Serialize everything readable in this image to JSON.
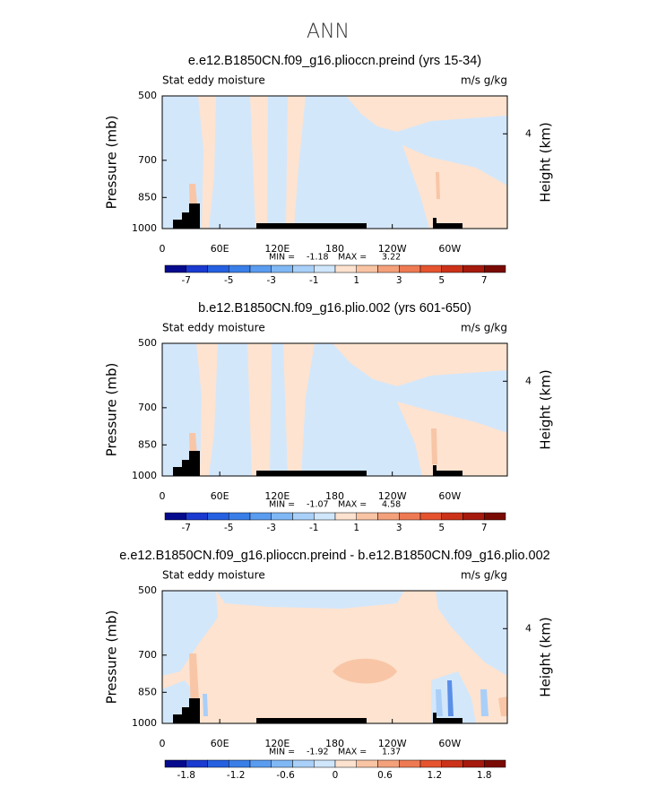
{
  "title": "ANN",
  "chart_data": [
    {
      "type": "contour",
      "title": "e.e12.B1850CN.f09_g16.plioccn.preind (yrs 15-34)",
      "subtitle_left": "Stat eddy moisture",
      "subtitle_right": "m/s g/kg",
      "ylabel": "Pressure (mb)",
      "y2label": "Height (km)",
      "ylog": true,
      "ylim": [
        1000,
        500
      ],
      "yticks": [
        500,
        700,
        850,
        1000
      ],
      "y2lim": [
        0,
        5.6
      ],
      "y2ticks": [
        4
      ],
      "xlim": [
        0,
        360
      ],
      "xticks": [
        0,
        {
          "value": 60,
          "label": "60E"
        },
        {
          "value": 120,
          "label": "120E"
        },
        180,
        {
          "value": 240,
          "label": "120W"
        },
        {
          "value": 300,
          "label": "60W"
        }
      ],
      "min_label": "MIN =",
      "min": -1.18,
      "max_label": "MAX =",
      "max": 3.22,
      "colorbar": {
        "colors": [
          "#060a8c",
          "#1a3ad0",
          "#2560e0",
          "#3a7fe8",
          "#5a9cf0",
          "#80b8f5",
          "#a8d0f8",
          "#cfe6fb",
          "#fde2cf",
          "#f9c4a4",
          "#f4a07a",
          "#ee7a53",
          "#e5542f",
          "#cc3218",
          "#a51a0c",
          "#7a0a04"
        ],
        "ticks": [
          -7,
          -5,
          -3,
          -1,
          1,
          3,
          5,
          7
        ]
      }
    },
    {
      "type": "contour",
      "title": "b.e12.B1850CN.f09_g16.plio.002 (yrs 601-650)",
      "subtitle_left": "Stat eddy moisture",
      "subtitle_right": "m/s g/kg",
      "ylabel": "Pressure (mb)",
      "y2label": "Height (km)",
      "ylog": true,
      "ylim": [
        1000,
        500
      ],
      "yticks": [
        500,
        700,
        850,
        1000
      ],
      "y2lim": [
        0,
        5.6
      ],
      "y2ticks": [
        4
      ],
      "xlim": [
        0,
        360
      ],
      "xticks": [
        0,
        {
          "value": 60,
          "label": "60E"
        },
        {
          "value": 120,
          "label": "120E"
        },
        180,
        {
          "value": 240,
          "label": "120W"
        },
        {
          "value": 300,
          "label": "60W"
        }
      ],
      "min_label": "MIN =",
      "min": -1.07,
      "max_label": "MAX =",
      "max": 4.58,
      "colorbar": {
        "colors": [
          "#060a8c",
          "#1a3ad0",
          "#2560e0",
          "#3a7fe8",
          "#5a9cf0",
          "#80b8f5",
          "#a8d0f8",
          "#cfe6fb",
          "#fde2cf",
          "#f9c4a4",
          "#f4a07a",
          "#ee7a53",
          "#e5542f",
          "#cc3218",
          "#a51a0c",
          "#7a0a04"
        ],
        "ticks": [
          -7,
          -5,
          -3,
          -1,
          1,
          3,
          5,
          7
        ]
      }
    },
    {
      "type": "contour",
      "title": "e.e12.B1850CN.f09_g16.plioccn.preind - b.e12.B1850CN.f09_g16.plio.002",
      "subtitle_left": "Stat eddy moisture",
      "subtitle_right": "m/s g/kg",
      "ylabel": "Pressure (mb)",
      "y2label": "Height (km)",
      "ylog": true,
      "ylim": [
        1000,
        500
      ],
      "yticks": [
        500,
        700,
        850,
        1000
      ],
      "y2lim": [
        0,
        5.6
      ],
      "y2ticks": [
        4
      ],
      "xlim": [
        0,
        360
      ],
      "xticks": [
        0,
        {
          "value": 60,
          "label": "60E"
        },
        {
          "value": 120,
          "label": "120E"
        },
        180,
        {
          "value": 240,
          "label": "120W"
        },
        {
          "value": 300,
          "label": "60W"
        }
      ],
      "min_label": "MIN =",
      "min": -1.92,
      "max_label": "MAX =",
      "max": 1.37,
      "colorbar": {
        "colors": [
          "#060a8c",
          "#1a3ad0",
          "#2560e0",
          "#3a7fe8",
          "#5a9cf0",
          "#80b8f5",
          "#a8d0f8",
          "#cfe6fb",
          "#fde2cf",
          "#f9c4a4",
          "#f4a07a",
          "#ee7a53",
          "#e5542f",
          "#cc3218",
          "#a51a0c",
          "#7a0a04"
        ],
        "ticks": [
          -1.8,
          -1.2,
          -0.6,
          0,
          0.6,
          1.2,
          1.8
        ]
      }
    }
  ]
}
